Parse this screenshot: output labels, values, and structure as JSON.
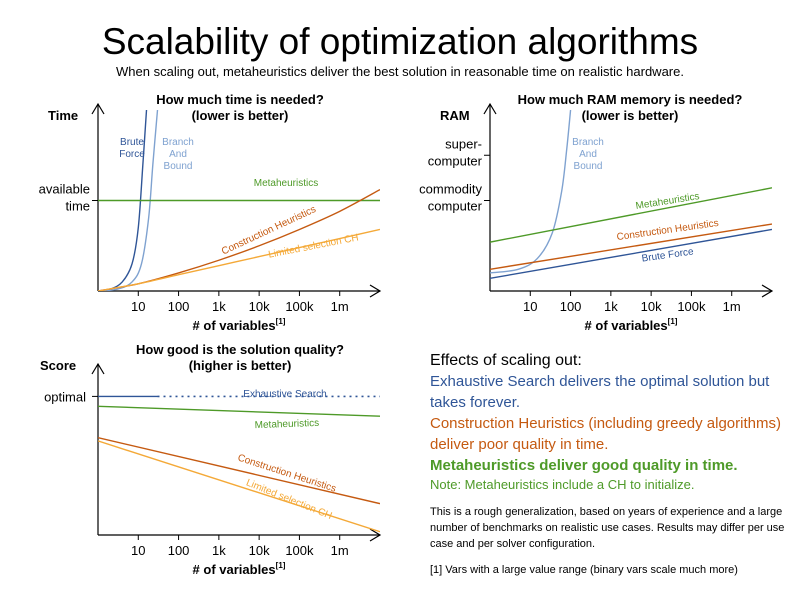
{
  "title": "Scalability of optimization algorithms",
  "subtitle": "When scaling out, metaheuristics deliver the best solution in reasonable time on realistic hardware.",
  "chart_data": [
    {
      "type": "line",
      "id": "time",
      "title": [
        "How much time is needed?",
        "(lower is better)"
      ],
      "ylabel": "Time",
      "xlabel": "# of variables",
      "xlabel_sup": "[1]",
      "x_scale": "log",
      "xlim": [
        1,
        10000000
      ],
      "ylim": [
        0,
        10
      ],
      "x_ticks": [
        {
          "v": 10,
          "label": "10"
        },
        {
          "v": 100,
          "label": "100"
        },
        {
          "v": 1000,
          "label": "1k"
        },
        {
          "v": 10000,
          "label": "10k"
        },
        {
          "v": 100000,
          "label": "100k"
        },
        {
          "v": 1000000,
          "label": "1m"
        }
      ],
      "y_ticks": [
        {
          "v": 5,
          "label": [
            "available",
            "time"
          ]
        }
      ],
      "series": [
        {
          "name": "Brute Force",
          "label_lines": [
            "Brute",
            "Force"
          ],
          "color": "#2f5597",
          "x": [
            1,
            2,
            4,
            7,
            10,
            13,
            16
          ],
          "y": [
            0,
            0.1,
            0.5,
            1.5,
            3.5,
            7,
            10
          ]
        },
        {
          "name": "Branch And Bound",
          "label_lines": [
            "Branch",
            "And",
            "Bound"
          ],
          "color": "#7fa2d0",
          "x": [
            1,
            3,
            7,
            12,
            18,
            23,
            30
          ],
          "y": [
            0,
            0.1,
            0.5,
            1.5,
            4,
            7,
            10
          ]
        },
        {
          "name": "Metaheuristics",
          "color": "#4e9a28",
          "x": [
            1,
            10000000
          ],
          "y": [
            5,
            5
          ]
        },
        {
          "name": "Construction Heuristics",
          "color": "#c55a11",
          "x": [
            1,
            10,
            100,
            1000,
            10000,
            100000,
            1000000,
            10000000
          ],
          "y": [
            0,
            0.4,
            1,
            1.7,
            2.5,
            3.4,
            4.4,
            5.6
          ]
        },
        {
          "name": "Limited selection CH",
          "color": "#f4a938",
          "x": [
            1,
            10,
            100,
            1000,
            10000,
            100000,
            1000000,
            10000000
          ],
          "y": [
            0,
            0.4,
            0.9,
            1.4,
            1.9,
            2.4,
            2.9,
            3.4
          ]
        }
      ]
    },
    {
      "type": "line",
      "id": "ram",
      "title": [
        "How much RAM memory is needed?",
        "(lower is better)"
      ],
      "ylabel": "RAM",
      "xlabel": "# of variables",
      "xlabel_sup": "[1]",
      "x_scale": "log",
      "xlim": [
        1,
        10000000
      ],
      "ylim": [
        0,
        10
      ],
      "x_ticks": [
        {
          "v": 10,
          "label": "10"
        },
        {
          "v": 100,
          "label": "100"
        },
        {
          "v": 1000,
          "label": "1k"
        },
        {
          "v": 10000,
          "label": "10k"
        },
        {
          "v": 100000,
          "label": "100k"
        },
        {
          "v": 1000000,
          "label": "1m"
        }
      ],
      "y_ticks": [
        {
          "v": 7.5,
          "label": [
            "super-",
            "computer"
          ]
        },
        {
          "v": 5,
          "label": [
            "commodity",
            "computer"
          ]
        }
      ],
      "series": [
        {
          "name": "Branch And Bound",
          "label_lines": [
            "Branch",
            "And",
            "Bound"
          ],
          "color": "#7fa2d0",
          "x": [
            1,
            5,
            15,
            35,
            60,
            80,
            100
          ],
          "y": [
            1,
            1.2,
            1.8,
            3.2,
            5.5,
            7.8,
            10
          ]
        },
        {
          "name": "Metaheuristics",
          "color": "#4e9a28",
          "x": [
            1,
            10000000
          ],
          "y": [
            2.7,
            5.7
          ]
        },
        {
          "name": "Construction Heuristics",
          "color": "#c55a11",
          "x": [
            1,
            10000000
          ],
          "y": [
            1.2,
            3.7
          ]
        },
        {
          "name": "Brute Force",
          "color": "#2f5597",
          "x": [
            1,
            10000000
          ],
          "y": [
            0.7,
            3.4
          ]
        }
      ]
    },
    {
      "type": "line",
      "id": "score",
      "title": [
        "How good is the solution quality?",
        "(higher is better)"
      ],
      "ylabel": "Score",
      "xlabel": "# of variables",
      "xlabel_sup": "[1]",
      "x_scale": "log",
      "xlim": [
        1,
        10000000
      ],
      "ylim": [
        0,
        10
      ],
      "x_ticks": [
        {
          "v": 10,
          "label": "10"
        },
        {
          "v": 100,
          "label": "100"
        },
        {
          "v": 1000,
          "label": "1k"
        },
        {
          "v": 10000,
          "label": "10k"
        },
        {
          "v": 100000,
          "label": "100k"
        },
        {
          "v": 1000000,
          "label": "1m"
        }
      ],
      "y_ticks": [
        {
          "v": 8.4,
          "label": [
            "optimal"
          ]
        }
      ],
      "series": [
        {
          "name": "Exhaustive Search",
          "color": "#2f5597",
          "x": [
            1,
            30
          ],
          "y": [
            8.4,
            8.4
          ],
          "dashed_x": [
            30,
            10000000
          ]
        },
        {
          "name": "Metaheuristics",
          "color": "#4e9a28",
          "x": [
            1,
            10000000
          ],
          "y": [
            7.8,
            7.2
          ]
        },
        {
          "name": "Construction Heuristics",
          "color": "#c55a11",
          "x": [
            1,
            10000000
          ],
          "y": [
            5.9,
            1.9
          ]
        },
        {
          "name": "Limited selection CH",
          "color": "#f4a938",
          "x": [
            1,
            10000000
          ],
          "y": [
            5.7,
            0.2
          ]
        }
      ]
    }
  ],
  "effects": {
    "title": "Effects of scaling out:",
    "exhaustive": "Exhaustive Search delivers the optimal solution but takes forever.",
    "construction": "Construction Heuristics (including greedy algorithms) deliver poor quality in time.",
    "meta": "Metaheuristics deliver good quality in time.",
    "note": "Note: Metaheuristics include a CH to initialize.",
    "rough": "This is a rough generalization, based on years of experience and a large number of benchmarks on realistic use cases. Results may differ per use case and per solver configuration.",
    "footnote": "[1] Vars with a large value range (binary vars scale much more)",
    "colors": {
      "exhaustive": "#2f5597",
      "construction": "#c55a11",
      "meta": "#4e9a28"
    }
  }
}
